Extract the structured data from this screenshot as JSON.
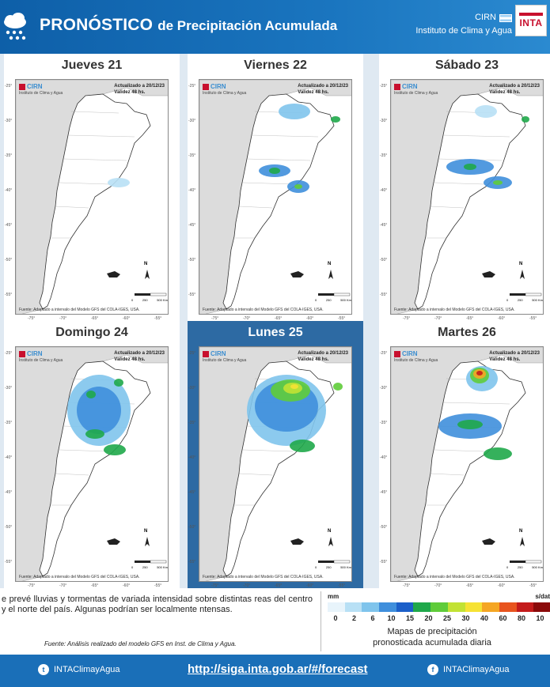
{
  "header": {
    "title_main": "PRONÓSTICO",
    "title_rest": "de Precipitación Acumulada",
    "org_short": "CIRN",
    "org_full": "Instituto de Clima y Agua",
    "logo_text": "INTA"
  },
  "maps": [
    {
      "day": "Jueves 21",
      "updated": "Actualizado a 20/12/23",
      "validity": "Validez 48 hs."
    },
    {
      "day": "Viernes 22",
      "updated": "Actualizado a 20/12/23",
      "validity": "Validez 48 hs."
    },
    {
      "day": "Sábado 23",
      "updated": "Actualizado a 20/12/23",
      "validity": "Validez 48 hs."
    },
    {
      "day": "Domingo 24",
      "updated": "Actualizado a 20/12/23",
      "validity": "Validez 48 hs."
    },
    {
      "day": "Lunes 25",
      "updated": "Actualizado a 20/12/23",
      "validity": "Validez 48 hs."
    },
    {
      "day": "Martes 26",
      "updated": "Actualizado a 20/12/23",
      "validity": "Validez 48 hs."
    }
  ],
  "map_common": {
    "logo": "CIRN",
    "logo_sub": "Instituto de Clima y Agua",
    "source": "Fuente: Adaptado a intervalo del Modelo GFS del COLA-IGES, USA.",
    "lat_labels": [
      "-25°",
      "-30°",
      "-35°",
      "-40°",
      "-45°",
      "-50°",
      "-55°"
    ],
    "lon_labels": [
      "-75°",
      "-70°",
      "-65°",
      "-60°",
      "-55°"
    ],
    "scale_labels": [
      "0",
      "250",
      "500 Km"
    ]
  },
  "info": {
    "description": "e prevé lluvias y tormentas de variada intensidad sobre distintas reas del centro y el norte del país. Algunas podrían ser localmente ntensas.",
    "source": "Fuente: Análisis realizado del modelo GFS en Inst. de Clima y Agua."
  },
  "legend": {
    "unit": "mm",
    "right_label": "s/dat",
    "ticks": [
      "0",
      "2",
      "6",
      "10",
      "15",
      "20",
      "25",
      "30",
      "40",
      "60",
      "80",
      "10"
    ],
    "colors": [
      "#e8f4fb",
      "#b8e0f5",
      "#7fc4ec",
      "#3f8fdc",
      "#1b5fc9",
      "#1fa84a",
      "#5fcc3a",
      "#c2e234",
      "#f6e234",
      "#f5a623",
      "#e8541e",
      "#c41b1b",
      "#8b0a0a"
    ],
    "title_line1": "Mapas de precipitación",
    "title_line2": "pronosticada acumulada diaria"
  },
  "footer": {
    "twitter": "INTAClimayAgua",
    "url": "http://siga.inta.gob.ar/#/forecast",
    "facebook": "INTAClimayAgua"
  }
}
